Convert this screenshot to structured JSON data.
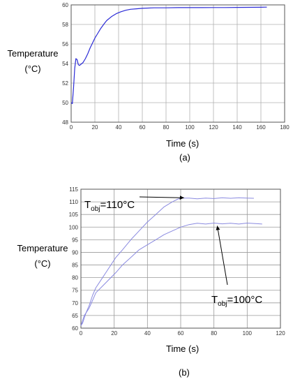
{
  "chart_data": [
    {
      "id": "a",
      "type": "line",
      "caption": "(a)",
      "ylabel_line1": "Temperature",
      "ylabel_line2": "(°C)",
      "xlabel": "Time (s)",
      "xlim": [
        0,
        180
      ],
      "ylim": [
        48,
        60
      ],
      "xticks": [
        "0",
        "20",
        "40",
        "60",
        "80",
        "100",
        "120",
        "140",
        "160",
        "180"
      ],
      "yticks": [
        "48",
        "50",
        "52",
        "54",
        "56",
        "58",
        "60"
      ],
      "grid": true,
      "line_color": "#2b2bd6",
      "series": [
        {
          "x": [
            0,
            1,
            2,
            3,
            4,
            5,
            6,
            7,
            8,
            10,
            12,
            14,
            16,
            18,
            20,
            22,
            25,
            28,
            30,
            34,
            38,
            42,
            46,
            50,
            55,
            60,
            70,
            80,
            90,
            100,
            110,
            120,
            130,
            140,
            150,
            160,
            165
          ],
          "y": [
            50.0,
            49.9,
            51.5,
            53.5,
            54.5,
            54.4,
            53.9,
            53.8,
            53.9,
            54.1,
            54.5,
            55.0,
            55.6,
            56.1,
            56.6,
            57.0,
            57.6,
            58.1,
            58.4,
            58.8,
            59.1,
            59.3,
            59.45,
            59.55,
            59.6,
            59.65,
            59.7,
            59.7,
            59.72,
            59.72,
            59.72,
            59.73,
            59.73,
            59.74,
            59.75,
            59.76,
            59.77
          ]
        }
      ]
    },
    {
      "id": "b",
      "type": "line",
      "caption": "(b)",
      "ylabel_line1": "Temperature",
      "ylabel_line2": "(°C)",
      "xlabel": "Time (s)",
      "xlim": [
        0,
        120
      ],
      "ylim": [
        60,
        115
      ],
      "xticks": [
        "0",
        "20",
        "40",
        "60",
        "80",
        "100",
        "120"
      ],
      "yticks": [
        "60",
        "65",
        "70",
        "75",
        "80",
        "85",
        "90",
        "95",
        "100",
        "105",
        "110",
        "115"
      ],
      "grid": true,
      "line_color": "#8a8ae0",
      "annotations": [
        {
          "prefix": "T",
          "sub": "obj",
          "suffix": "=110°C"
        },
        {
          "prefix": "T",
          "sub": "obj",
          "suffix": "=100°C"
        }
      ],
      "series": [
        {
          "x": [
            0,
            1,
            2,
            3,
            5,
            7,
            9,
            12,
            15,
            18,
            21,
            25,
            30,
            35,
            40,
            45,
            50,
            55,
            58,
            60,
            65,
            70,
            75,
            80,
            85,
            90,
            95,
            100,
            104
          ],
          "y": [
            61,
            63,
            65,
            66,
            69,
            73,
            76,
            79,
            82,
            85,
            88,
            91,
            95,
            98.5,
            102,
            105,
            108,
            110,
            111,
            111.5,
            111.5,
            111.2,
            111.5,
            111.3,
            111.6,
            111.4,
            111.6,
            111.5,
            111.4
          ]
        },
        {
          "x": [
            0,
            1,
            2,
            3,
            5,
            7,
            9,
            12,
            15,
            18,
            21,
            25,
            30,
            35,
            40,
            45,
            50,
            55,
            60,
            65,
            70,
            75,
            80,
            85,
            90,
            95,
            100,
            105,
            109
          ],
          "y": [
            61,
            62,
            64,
            66,
            68,
            71,
            74,
            76,
            78,
            80,
            82,
            85,
            88,
            91,
            93,
            95,
            97,
            98.5,
            100,
            101,
            101.5,
            101.2,
            101.6,
            101.3,
            101.5,
            101.2,
            101.6,
            101.4,
            101.2
          ]
        }
      ]
    }
  ]
}
